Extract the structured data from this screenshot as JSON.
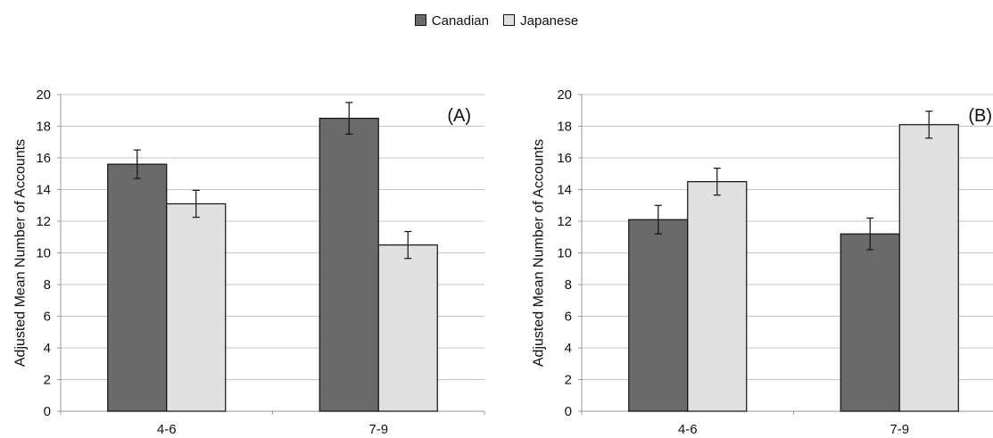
{
  "legend": [
    {
      "name": "Canadian",
      "color": "#6a6a6a"
    },
    {
      "name": "Japanese",
      "color": "#e0e0e0"
    }
  ],
  "chart_data": [
    {
      "type": "bar",
      "panel_label": "(A)",
      "categories": [
        "4-6",
        "7-9"
      ],
      "series": [
        {
          "name": "Canadian",
          "values": [
            15.6,
            18.5
          ],
          "errors": [
            0.9,
            1.0
          ]
        },
        {
          "name": "Japanese",
          "values": [
            13.1,
            10.5
          ],
          "errors": [
            0.85,
            0.85
          ]
        }
      ],
      "ylabel": "Adjusted Mean Number of Accounts",
      "ylim": [
        0,
        20
      ],
      "yticks": [
        "0",
        "2",
        "4",
        "6",
        "8",
        "10",
        "12",
        "14",
        "16",
        "18",
        "20"
      ],
      "grid": true
    },
    {
      "type": "bar",
      "panel_label": "(B)",
      "categories": [
        "4-6",
        "7-9"
      ],
      "series": [
        {
          "name": "Canadian",
          "values": [
            12.1,
            11.2
          ],
          "errors": [
            0.9,
            1.0
          ]
        },
        {
          "name": "Japanese",
          "values": [
            14.5,
            18.1
          ],
          "errors": [
            0.85,
            0.85
          ]
        }
      ],
      "ylabel": "Adjusted Mean Number of Accounts",
      "ylim": [
        0,
        20
      ],
      "yticks": [
        "0",
        "2",
        "4",
        "6",
        "8",
        "10",
        "12",
        "14",
        "16",
        "18",
        "20"
      ],
      "grid": true
    }
  ]
}
